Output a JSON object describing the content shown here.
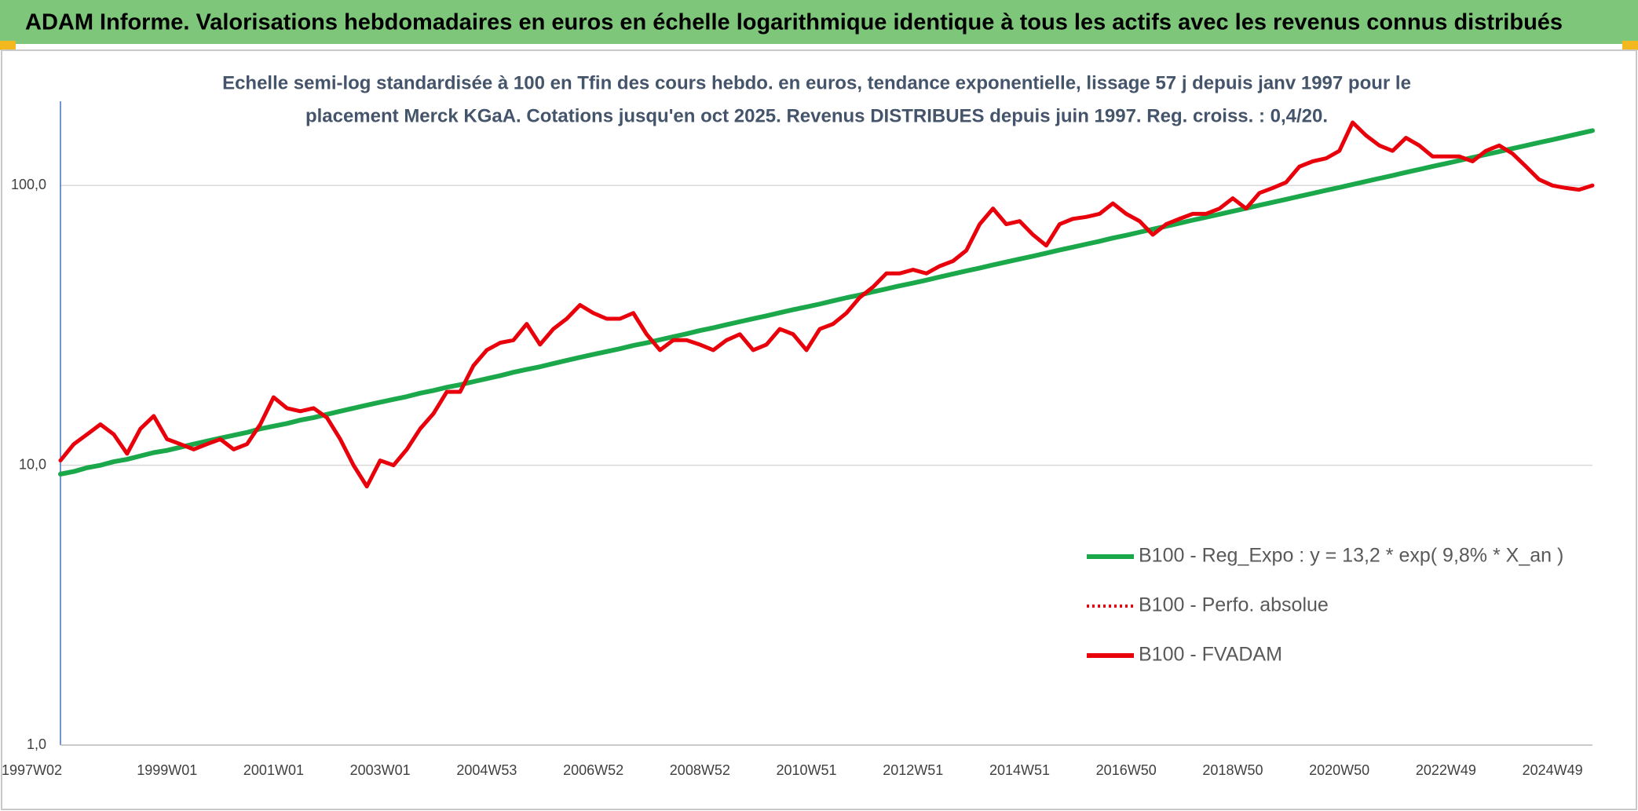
{
  "chart_data": {
    "type": "line",
    "title": "ADAM Informe. Valorisations hebdomadaires en euros en échelle logarithmique identique à tous les actifs avec les revenus connus distribués",
    "subtitle": [
      "Echelle semi-log standardisée à 100 en Tfin des cours hebdo. en euros, tendance exponentielle, lissage 57 j depuis janv 1997 pour le",
      "placement Merck KGaA. Cotations jusqu'en oct 2025. Revenus DISTRIBUES depuis juin 1997. Reg. croiss. : 0,4/20."
    ],
    "y_log": true,
    "ylim": [
      1,
      200
    ],
    "yticks": [
      {
        "value": 1,
        "label": "1,0"
      },
      {
        "value": 10,
        "label": "10,0"
      },
      {
        "value": 100,
        "label": "100,0"
      }
    ],
    "grid": true,
    "legend": "lower-right",
    "categories": [
      "1997W02",
      null,
      null,
      null,
      null,
      null,
      null,
      null,
      "1999W01",
      null,
      null,
      null,
      null,
      null,
      null,
      null,
      "2001W01",
      null,
      null,
      null,
      null,
      null,
      null,
      null,
      "2003W01",
      null,
      null,
      null,
      null,
      null,
      null,
      null,
      "2004W53",
      null,
      null,
      null,
      null,
      null,
      null,
      null,
      "2006W52",
      null,
      null,
      null,
      null,
      null,
      null,
      null,
      "2008W52",
      null,
      null,
      null,
      null,
      null,
      null,
      null,
      "2010W51",
      null,
      null,
      null,
      null,
      null,
      null,
      null,
      "2012W51",
      null,
      null,
      null,
      null,
      null,
      null,
      null,
      "2014W51",
      null,
      null,
      null,
      null,
      null,
      null,
      null,
      "2016W50",
      null,
      null,
      null,
      null,
      null,
      null,
      null,
      "2018W50",
      null,
      null,
      null,
      null,
      null,
      null,
      null,
      "2020W50",
      null,
      null,
      null,
      null,
      null,
      null,
      null,
      "2022W49",
      null,
      null,
      null,
      null,
      null,
      null,
      null,
      "2024W49",
      null,
      null,
      null
    ],
    "series": [
      {
        "name": "B100 - Reg_Expo : y = 13,2 * exp( 9,8% *  X_an )",
        "color": "#1aa84a",
        "dash": "solid",
        "values": [
          9.3,
          9.5,
          9.8,
          10.0,
          10.3,
          10.5,
          10.8,
          11.1,
          11.3,
          11.6,
          11.9,
          12.2,
          12.5,
          12.8,
          13.1,
          13.5,
          13.8,
          14.1,
          14.5,
          14.8,
          15.2,
          15.6,
          16.0,
          16.4,
          16.8,
          17.2,
          17.6,
          18.1,
          18.5,
          19.0,
          19.4,
          19.9,
          20.4,
          20.9,
          21.5,
          22.0,
          22.5,
          23.1,
          23.7,
          24.3,
          24.9,
          25.5,
          26.1,
          26.8,
          27.4,
          28.1,
          28.8,
          29.5,
          30.3,
          31.0,
          31.8,
          32.6,
          33.4,
          34.2,
          35.1,
          36.0,
          36.8,
          37.7,
          38.7,
          39.7,
          40.6,
          41.7,
          42.7,
          43.8,
          44.8,
          45.9,
          47.1,
          48.3,
          49.5,
          50.7,
          52.0,
          53.3,
          54.6,
          55.9,
          57.3,
          58.8,
          60.2,
          61.7,
          63.2,
          64.9,
          66.4,
          68.1,
          69.8,
          71.5,
          73.3,
          75.2,
          77.0,
          78.9,
          80.9,
          82.9,
          85.0,
          87.1,
          89.2,
          91.5,
          93.7,
          96.1,
          98.4,
          100.9,
          103.4,
          106.0,
          108.6,
          111.4,
          114.1,
          117.0,
          119.8,
          122.8,
          125.9,
          129.0,
          132.2,
          135.6,
          138.9,
          142.4,
          145.8,
          149.5,
          153.3,
          157.1
        ]
      },
      {
        "name": "B100 - Perfo. absolue",
        "color": "#e8000b",
        "dash": "dotted"
      },
      {
        "name": "B100 - FVADAM",
        "color": "#e8000b",
        "dash": "solid",
        "values": [
          10.4,
          11.9,
          12.9,
          14.0,
          12.9,
          11.0,
          13.5,
          15.0,
          12.4,
          11.9,
          11.4,
          11.9,
          12.4,
          11.4,
          11.9,
          14.0,
          17.5,
          16.0,
          15.6,
          16.0,
          14.8,
          12.4,
          10.0,
          8.4,
          10.4,
          10.0,
          11.4,
          13.5,
          15.3,
          18.3,
          18.3,
          22.7,
          25.8,
          27.4,
          28.0,
          32.0,
          27.0,
          30.7,
          33.4,
          37.4,
          35.0,
          33.4,
          33.4,
          35.0,
          29.4,
          25.8,
          28.0,
          28.0,
          27.0,
          25.8,
          28.0,
          29.4,
          25.8,
          27.0,
          30.7,
          29.4,
          25.8,
          30.7,
          32.0,
          35.0,
          39.8,
          43.4,
          48.5,
          48.5,
          50.0,
          48.5,
          51.5,
          53.7,
          58.6,
          72.7,
          82.7,
          72.7,
          74.6,
          66.7,
          61.0,
          72.7,
          76.0,
          77.2,
          79.2,
          86.3,
          79.2,
          74.6,
          66.7,
          72.7,
          76.0,
          79.2,
          79.2,
          82.7,
          90.0,
          82.7,
          94.0,
          98.0,
          102.6,
          116.8,
          122.0,
          125.0,
          133.0,
          168.0,
          151.0,
          139.0,
          133.0,
          148.0,
          139.0,
          127.0,
          127.0,
          127.0,
          122.0,
          133.0,
          139.0,
          130.0,
          117.0,
          105.0,
          100.0,
          98.0,
          96.6,
          100.0
        ]
      }
    ]
  }
}
